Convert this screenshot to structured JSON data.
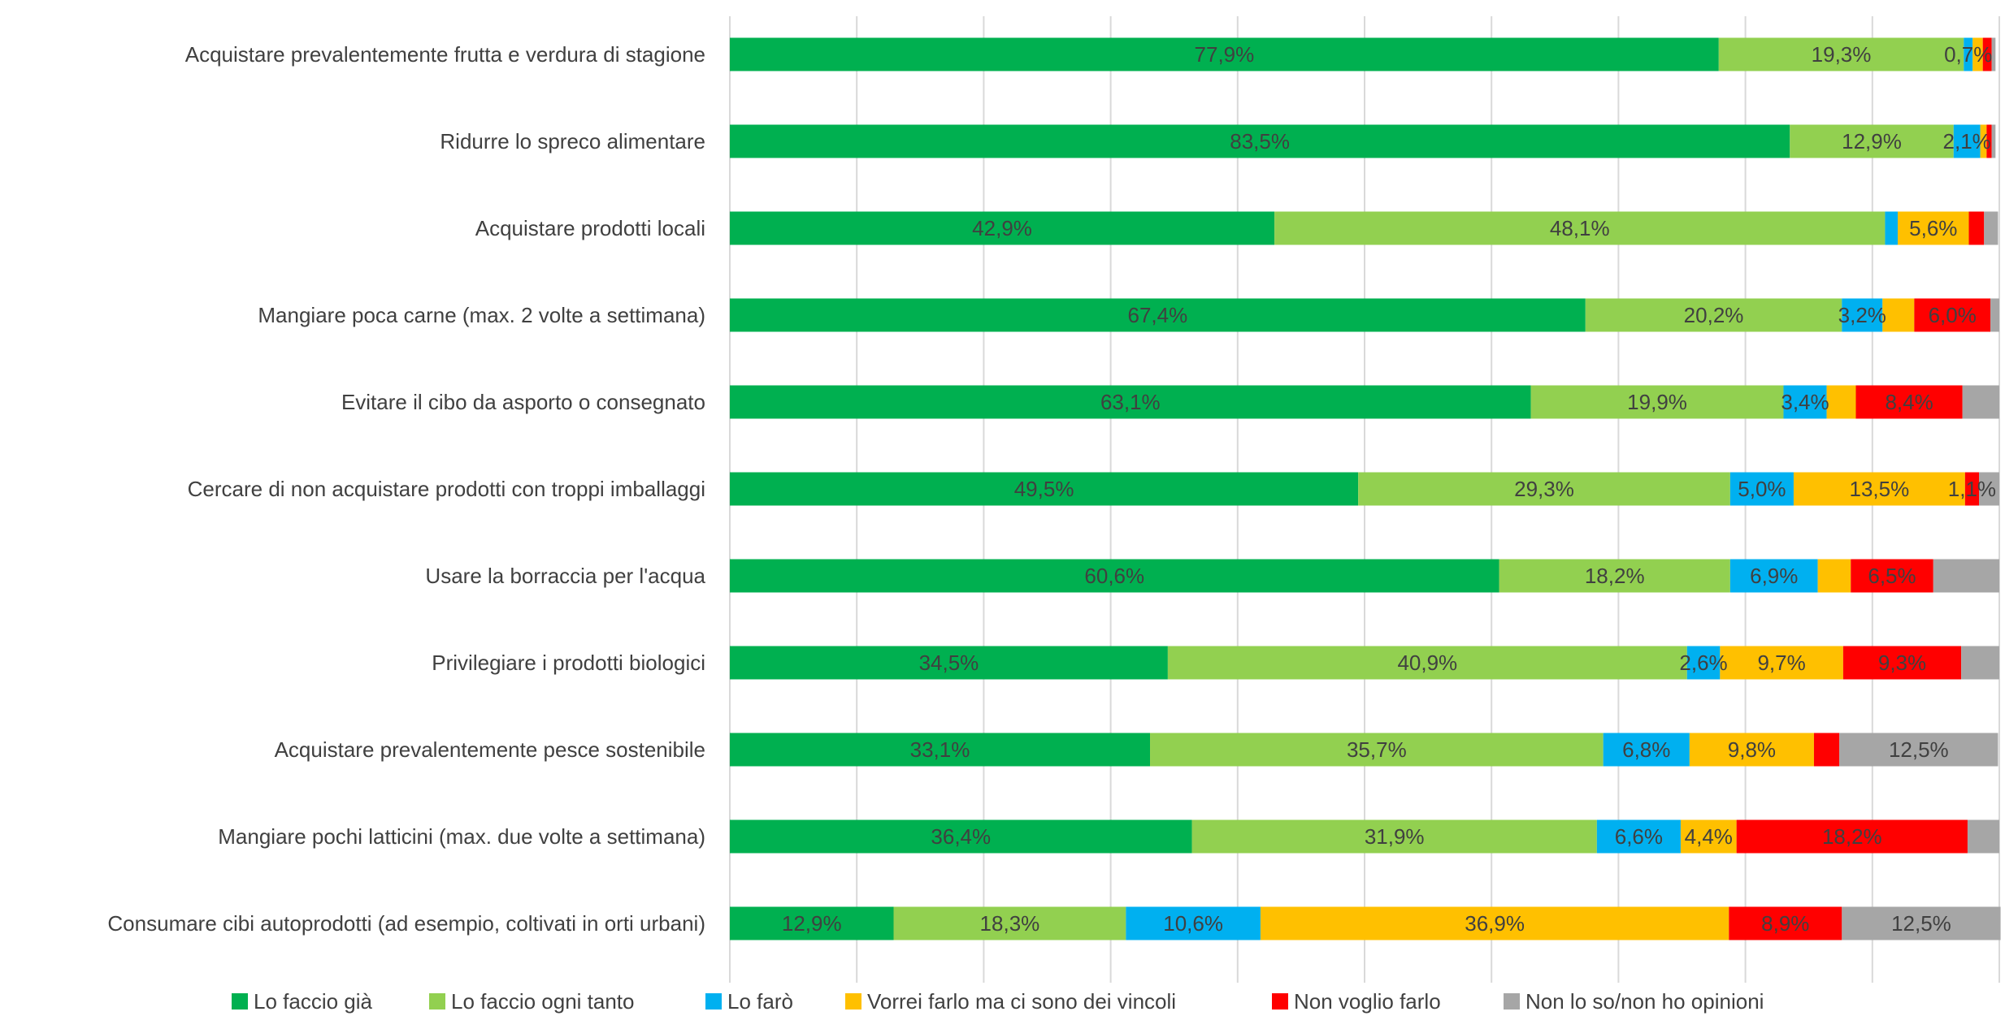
{
  "chart_data": {
    "type": "bar",
    "orientation": "horizontal",
    "stacked": true,
    "percent_stacked": true,
    "title": "",
    "xlabel": "",
    "ylabel": "",
    "xlim": [
      0,
      100
    ],
    "grid": true,
    "legend_position": "bottom",
    "categories": [
      "Acquistare prevalentemente frutta e verdura di stagione",
      "Ridurre lo spreco alimentare",
      "Acquistare prodotti locali",
      "Mangiare poca carne (max. 2 volte a settimana)",
      "Evitare il cibo da asporto o consegnato",
      "Cercare di non acquistare prodotti con troppi imballaggi",
      "Usare la borraccia per l'acqua",
      "Privilegiare i prodotti biologici",
      "Acquistare prevalentemente pesce sostenibile",
      "Mangiare pochi latticini (max. due volte a settimana)",
      "Consumare cibi autoprodotti (ad esempio, coltivati in orti urbani)"
    ],
    "series": [
      {
        "name": "Lo faccio già",
        "color": "#00b050",
        "values": [
          77.9,
          83.5,
          42.9,
          67.4,
          63.1,
          49.5,
          60.6,
          34.5,
          33.1,
          36.4,
          12.9
        ],
        "labels": [
          "77,9%",
          "83,5%",
          "42,9%",
          "67,4%",
          "63,1%",
          "49,5%",
          "60,6%",
          "34,5%",
          "33,1%",
          "36,4%",
          "12,9%"
        ]
      },
      {
        "name": "Lo faccio ogni tanto",
        "color": "#92d050",
        "values": [
          19.3,
          12.9,
          48.1,
          20.2,
          19.9,
          29.3,
          18.2,
          40.9,
          35.7,
          31.9,
          18.3
        ],
        "labels": [
          "19,3%",
          "12,9%",
          "48,1%",
          "20,2%",
          "19,9%",
          "29,3%",
          "18,2%",
          "40,9%",
          "35,7%",
          "31,9%",
          "18,3%"
        ]
      },
      {
        "name": "Lo farò",
        "color": "#00b0f0",
        "values": [
          0.7,
          2.1,
          1.0,
          3.2,
          3.4,
          5.0,
          6.9,
          2.6,
          6.8,
          6.6,
          10.6
        ],
        "labels": [
          "0,7%",
          "2,1%",
          "",
          "3,2%",
          "3,4%",
          "5,0%",
          "6,9%",
          "2,6%",
          "6,8%",
          "6,6%",
          "10,6%"
        ]
      },
      {
        "name": "Vorrei farlo ma ci sono dei vincoli",
        "color": "#ffc000",
        "values": [
          0.8,
          0.5,
          5.6,
          2.5,
          2.3,
          13.5,
          2.6,
          9.7,
          9.8,
          4.4,
          36.9
        ],
        "labels": [
          "",
          "",
          "5,6%",
          "",
          "",
          "13,5%",
          "",
          "9,7%",
          "9,8%",
          "4,4%",
          "36,9%"
        ]
      },
      {
        "name": "Non voglio farlo",
        "color": "#ff0000",
        "values": [
          0.7,
          0.4,
          1.2,
          6.0,
          8.4,
          1.1,
          6.5,
          9.3,
          2.0,
          18.2,
          8.9
        ],
        "labels": [
          "",
          "",
          "",
          "6,0%",
          "8,4%",
          "1,1%",
          "6,5%",
          "9,3%",
          "",
          "18,2%",
          "8,9%"
        ]
      },
      {
        "name": "Non lo so/non ho opinioni",
        "color": "#a6a6a6",
        "values": [
          0.3,
          0.3,
          1.1,
          0.7,
          2.9,
          1.6,
          5.2,
          3.0,
          12.5,
          2.5,
          12.5
        ],
        "labels": [
          "",
          "",
          "",
          "",
          "",
          "",
          "",
          "",
          "12,5%",
          "",
          "12,5%"
        ]
      }
    ]
  }
}
